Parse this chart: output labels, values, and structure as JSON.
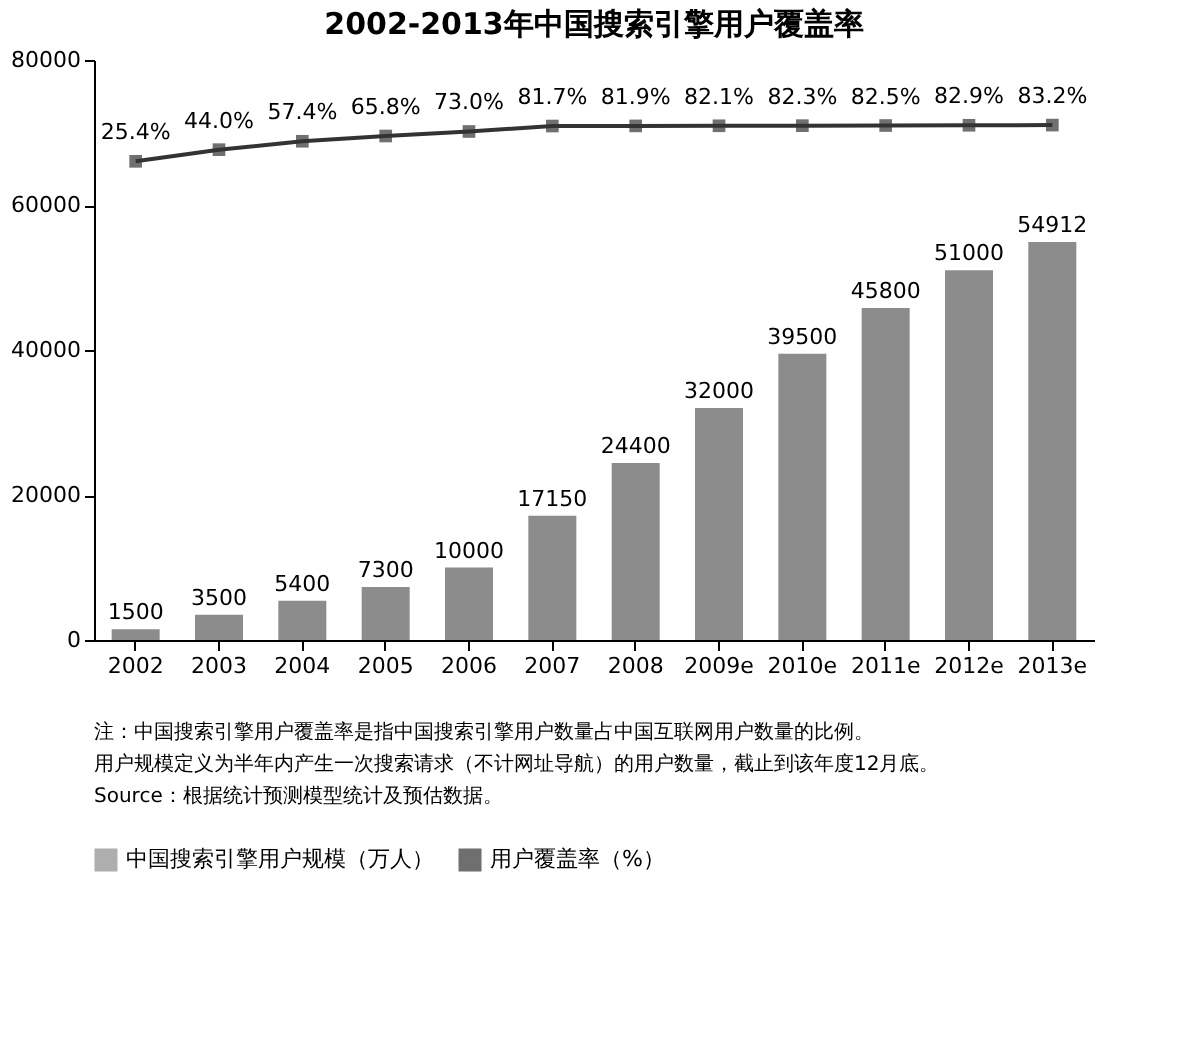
{
  "chart_data": {
    "type": "bar",
    "title": "2002-2013年中国搜索引擎用户覆盖率",
    "categories": [
      "2002",
      "2003",
      "2004",
      "2005",
      "2006",
      "2007",
      "2008",
      "2009e",
      "2010e",
      "2011e",
      "2012e",
      "2013e"
    ],
    "series": [
      {
        "name": "中国搜索引擎用户规模（万人）",
        "color": "#8c8c8c",
        "values": [
          1500,
          3500,
          5400,
          7300,
          10000,
          17150,
          24400,
          32000,
          39500,
          45800,
          51000,
          54912
        ]
      },
      {
        "name": "用户覆盖率（%）",
        "type": "line",
        "axis": "y2",
        "color": "#333333",
        "marker": "square",
        "values": [
          25.4,
          44.0,
          57.4,
          65.8,
          73.0,
          81.7,
          81.9,
          82.1,
          82.3,
          82.5,
          82.9,
          83.2
        ],
        "value_labels": [
          "25.4%",
          "44.0%",
          "57.4%",
          "65.8%",
          "73.0%",
          "81.7%",
          "81.9%",
          "82.1%",
          "82.3%",
          "82.5%",
          "82.9%",
          "83.2%"
        ]
      }
    ],
    "ylim": [
      0,
      80000
    ],
    "yticks": [
      0,
      20000,
      40000,
      60000,
      80000
    ],
    "y2lim": [
      -738,
      187
    ],
    "data_labels": true,
    "grid": false,
    "legend": "bottom",
    "annotations": [
      "注：中国搜索引擎用户覆盖率是指中国搜索引擎用户数量占中国互联网用户数量的比例。",
      "用户规模定义为半年内产生一次搜索请求（不计网址导航）的用户数量，截止到该年度12月底。",
      "Source：根据统计预测模型统计及预估数据。"
    ]
  }
}
